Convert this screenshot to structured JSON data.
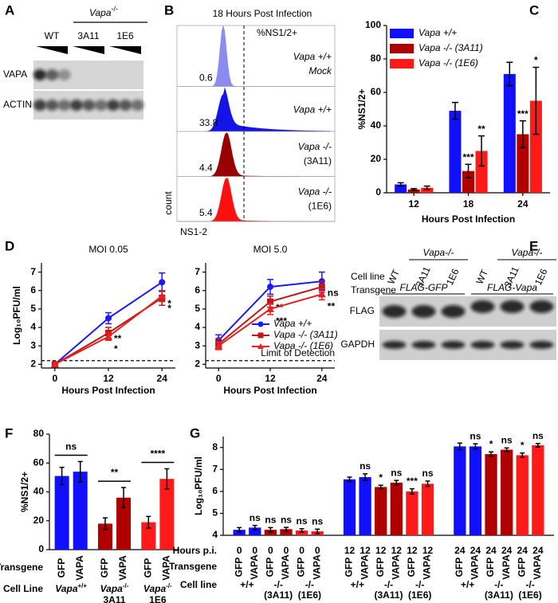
{
  "panel_labels": [
    "A",
    "B",
    "C",
    "D",
    "E",
    "F",
    "G"
  ],
  "blot_a": {
    "genotype": "Vapa",
    "genotype_sup": "-/-",
    "lanes": [
      {
        "label": "WT",
        "color": "#1a1ae6"
      },
      {
        "label": "3A11",
        "color": "#b00000"
      },
      {
        "label": "1E6",
        "color": "#ff1a1a"
      }
    ],
    "rows": [
      "VAPA",
      "ACTIN"
    ]
  },
  "blot_e": {
    "row_labels": [
      "Cell line",
      "Transgene"
    ],
    "genotype_headers": [
      "Vapa-/-",
      "Vapa-/-"
    ],
    "lanes": [
      {
        "label": "WT",
        "color": "#1a1ae6"
      },
      {
        "label": "3A11",
        "color": "#b00000"
      },
      {
        "label": "1E6",
        "color": "#ff1a1a"
      },
      {
        "label": "WT",
        "color": "#1a1ae6"
      },
      {
        "label": "3A11",
        "color": "#b00000"
      },
      {
        "label": "1E6",
        "color": "#ff1a1a"
      }
    ],
    "transgenes": [
      "FLAG-GFP",
      "FLAG-Vapa"
    ],
    "rows": [
      "FLAG",
      "GAPDH"
    ]
  },
  "chart_data": [
    {
      "type": "flow",
      "title": "18 Hours Post Infection",
      "gate_label": "%NS1/2+",
      "x_label": "NS1-2",
      "y_label": "count",
      "samples": [
        {
          "name": "Vapa +/+",
          "sub": "Mock",
          "color": "#8c8cf0"
        },
        {
          "name": "Vapa +/+",
          "color": "#1414e6"
        },
        {
          "name": "Vapa -/-",
          "sub": "(3A11)",
          "color": "#990000"
        },
        {
          "name": "Vapa -/-",
          "sub": "(1E6)",
          "color": "#ff1010"
        }
      ],
      "values": [
        0.6,
        33.8,
        4.4,
        5.4
      ]
    },
    {
      "type": "bar",
      "x_label": "Hours Post Infection",
      "y_label": "%NS1/2+",
      "categories": [
        "12",
        "18",
        "24"
      ],
      "series": [
        {
          "name": "Vapa +/+",
          "color": "#1010ff",
          "values": [
            5,
            49,
            71
          ],
          "errors": [
            1,
            5,
            7
          ],
          "sig_labels": [
            null,
            null,
            null
          ]
        },
        {
          "name": "Vapa -/- (3A11)",
          "color": "#b00000",
          "values": [
            2,
            13,
            35
          ],
          "errors": [
            0.5,
            4,
            8
          ],
          "sig_labels": [
            null,
            "***",
            "***"
          ]
        },
        {
          "name": "Vapa -/- (1E6)",
          "color": "#ff1a1a",
          "values": [
            3,
            25,
            55
          ],
          "errors": [
            1,
            9,
            20
          ],
          "sig_labels": [
            null,
            "**",
            "*"
          ]
        }
      ],
      "ylim": [
        0,
        100
      ],
      "yticks": [
        0,
        20,
        40,
        60,
        80,
        100
      ],
      "legend": "upper left"
    },
    {
      "type": "line",
      "title": "MOI 0.05",
      "x_label": "Hours Post Infection",
      "y_label": "Log₁₀PFU/ml",
      "x": [
        0,
        12,
        24
      ],
      "series": [
        {
          "color": "#1a1aff",
          "marker": "circle",
          "values": [
            2,
            4.5,
            6.45
          ],
          "errors": [
            0,
            0.3,
            0.5
          ],
          "sig_labels": [
            null,
            null,
            null
          ]
        },
        {
          "color": "#c01818",
          "marker": "square",
          "values": [
            2,
            3.7,
            5.6
          ],
          "errors": [
            0,
            0.3,
            0.4
          ],
          "sig_labels": [
            null,
            "**",
            "*"
          ]
        },
        {
          "color": "#e82020",
          "marker": "triangle",
          "values": [
            2,
            3.5,
            5.7
          ],
          "errors": [
            0,
            0.2,
            0.3
          ],
          "sig_labels": [
            null,
            "*",
            "*"
          ]
        }
      ],
      "xlim": [
        -3,
        27
      ],
      "xticks": [
        0,
        12,
        24
      ],
      "ylim": [
        1.8,
        7.5
      ],
      "yticks": [
        2,
        3,
        4,
        5,
        6,
        7
      ],
      "limit_of_detection": 2.2
    },
    {
      "type": "line",
      "title": "MOI 5.0",
      "x_label": "Hours Post Infection",
      "x": [
        0,
        12,
        24
      ],
      "series": [
        {
          "name": "Vapa +/+",
          "color": "#1a1aff",
          "marker": "circle",
          "values": [
            3.3,
            6.2,
            6.5
          ],
          "errors": [
            0.3,
            0.4,
            0.5
          ],
          "sig_labels": [
            null,
            null,
            null
          ]
        },
        {
          "name": "Vapa -/- (3A11)",
          "color": "#c01818",
          "marker": "square",
          "values": [
            3.1,
            5.4,
            6.2
          ],
          "errors": [
            0.3,
            0.3,
            0.3
          ],
          "sig_labels": [
            null,
            "**",
            "ns"
          ]
        },
        {
          "name": "Vapa -/- (1E6)",
          "color": "#e82020",
          "marker": "triangle",
          "values": [
            3.0,
            5.0,
            5.8
          ],
          "errors": [
            0.2,
            0.3,
            0.3
          ],
          "sig_labels": [
            null,
            "***",
            "**"
          ]
        }
      ],
      "xlim": [
        -3,
        27
      ],
      "xticks": [
        0,
        12,
        24
      ],
      "ylim": [
        1.8,
        7.5
      ],
      "yticks": [
        2,
        3,
        4,
        5,
        6,
        7
      ],
      "limit_of_detection": 2.2,
      "limit_label": "Limit of Detection",
      "legend": "center right"
    },
    {
      "type": "bar",
      "y_label": "%NS1/2+",
      "row_labels": [
        "Transgene",
        "Cell Line"
      ],
      "categories": [
        "GFP",
        "VAPA",
        "GFP",
        "VAPA",
        "GFP",
        "VAPA"
      ],
      "values": [
        51,
        54,
        18,
        36,
        19,
        49
      ],
      "errors": [
        6,
        7,
        4,
        7,
        4,
        7
      ],
      "colors": [
        "#1010ff",
        "#1010ff",
        "#b00000",
        "#b00000",
        "#ff1a1a",
        "#ff1a1a"
      ],
      "groups": [
        {
          "label": "Vapa",
          "sup": "+/+",
          "sig": "ns"
        },
        {
          "label": "Vapa",
          "sup": "-/-",
          "sub": "3A11",
          "sig": "**"
        },
        {
          "label": "Vapa",
          "sup": "-/-",
          "sub": "1E6",
          "sig": "****"
        }
      ],
      "ylim": [
        0,
        80
      ],
      "yticks": [
        0,
        20,
        40,
        60,
        80
      ]
    },
    {
      "type": "bar",
      "y_label": "Log₁₀PFU/ml",
      "row_labels": [
        "Hours p.i.",
        "Transgene",
        "Cell line"
      ],
      "categories": [
        "GFP",
        "VAPA",
        "GFP",
        "VAPA",
        "GFP",
        "VAPA",
        "GFP",
        "VAPA",
        "GFP",
        "VAPA",
        "GFP",
        "VAPA",
        "GFP",
        "VAPA",
        "GFP",
        "VAPA",
        "GFP",
        "VAPA"
      ],
      "hours": [
        0,
        0,
        0,
        0,
        0,
        0,
        12,
        12,
        12,
        12,
        12,
        12,
        24,
        24,
        24,
        24,
        24,
        24
      ],
      "values": [
        4.25,
        4.35,
        4.25,
        4.28,
        4.22,
        4.18,
        6.55,
        6.65,
        6.2,
        6.4,
        6.0,
        6.35,
        8.05,
        8.05,
        7.7,
        7.9,
        7.65,
        8.1
      ],
      "errors": [
        0.1,
        0.1,
        0.1,
        0.08,
        0.08,
        0.1,
        0.1,
        0.15,
        0.08,
        0.1,
        0.12,
        0.12,
        0.15,
        0.12,
        0.1,
        0.08,
        0.1,
        0.08
      ],
      "sig_labels": [
        null,
        "ns",
        "ns",
        "ns",
        "ns",
        "ns",
        null,
        "ns",
        "*",
        "ns",
        "***",
        "ns",
        null,
        "ns",
        "*",
        "ns",
        "*",
        "ns"
      ],
      "colors": [
        "#1010ff",
        "#1010ff",
        "#b00000",
        "#b00000",
        "#ff1a1a",
        "#ff1a1a",
        "#1010ff",
        "#1010ff",
        "#b00000",
        "#b00000",
        "#ff1a1a",
        "#ff1a1a",
        "#1010ff",
        "#1010ff",
        "#b00000",
        "#b00000",
        "#ff1a1a",
        "#ff1a1a"
      ],
      "groups": [
        {
          "cell_lines": [
            {
              "label": "+/+"
            },
            {
              "label": "-/-",
              "sub": "(3A11)"
            },
            {
              "label": "-/-",
              "sub": "(1E6)"
            }
          ]
        },
        {
          "cell_lines": [
            {
              "label": "+/+"
            },
            {
              "label": "-/-",
              "sub": "(3A11)"
            },
            {
              "label": "-/-",
              "sub": "(1E6)"
            }
          ]
        },
        {
          "cell_lines": [
            {
              "label": "+/+"
            },
            {
              "label": "-/-",
              "sub": "(3A11)"
            },
            {
              "label": "-/-",
              "sub": "(1E6)"
            }
          ]
        }
      ],
      "ylim": [
        4,
        8.5
      ],
      "yticks": [
        4,
        5,
        6,
        7,
        8
      ]
    }
  ]
}
